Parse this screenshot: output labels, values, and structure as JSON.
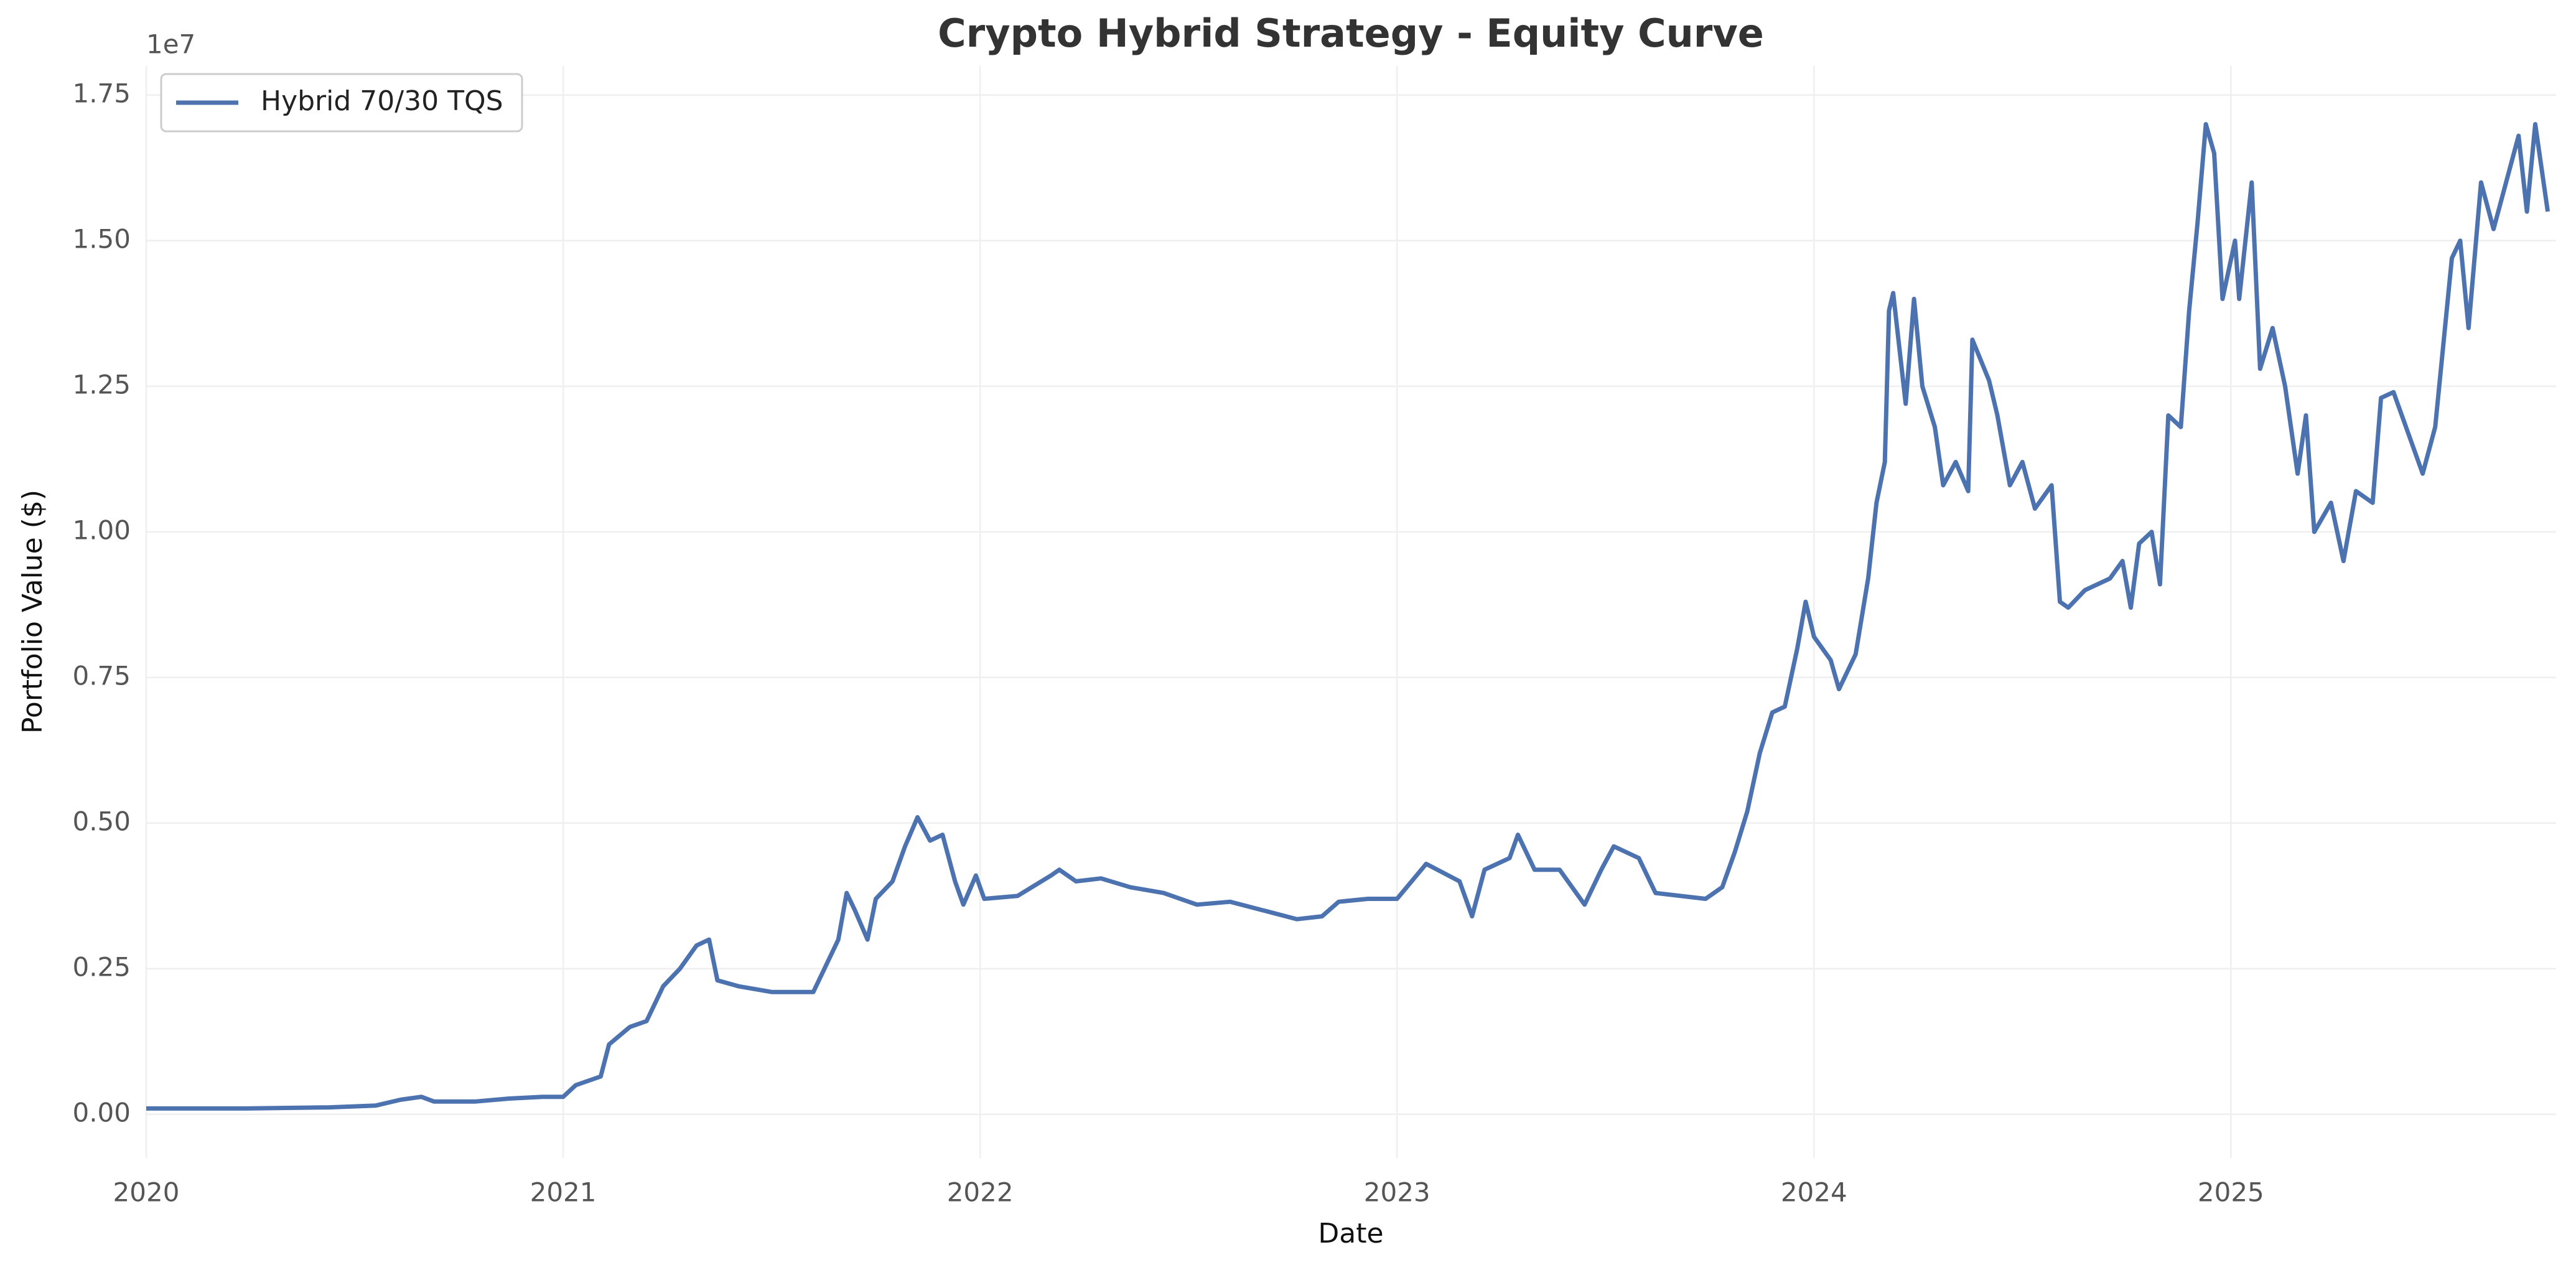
{
  "chart_data": {
    "type": "line",
    "title": "Crypto Hybrid Strategy - Equity Curve",
    "xlabel": "Date",
    "ylabel": "Portfolio Value ($)",
    "y_offset_label": "1e7",
    "x": [
      2020.0,
      2020.24,
      2020.44,
      2020.55,
      2020.61,
      2020.66,
      2020.69,
      2020.79,
      2020.87,
      2020.95,
      2021.0,
      2021.03,
      2021.09,
      2021.11,
      2021.16,
      2021.2,
      2021.24,
      2021.28,
      2021.32,
      2021.35,
      2021.37,
      2021.42,
      2021.5,
      2021.6,
      2021.62,
      2021.66,
      2021.68,
      2021.7,
      2021.73,
      2021.75,
      2021.79,
      2021.82,
      2021.85,
      2021.88,
      2021.91,
      2021.94,
      2021.96,
      2021.99,
      2022.01,
      2022.09,
      2022.17,
      2022.19,
      2022.23,
      2022.29,
      2022.36,
      2022.44,
      2022.52,
      2022.6,
      2022.68,
      2022.76,
      2022.82,
      2022.86,
      2022.93,
      2023.0,
      2023.07,
      2023.15,
      2023.18,
      2023.21,
      2023.27,
      2023.29,
      2023.33,
      2023.39,
      2023.45,
      2023.49,
      2023.52,
      2023.58,
      2023.62,
      2023.74,
      2023.78,
      2023.81,
      2023.84,
      2023.87,
      2023.9,
      2023.93,
      2023.96,
      2023.98,
      2024.0,
      2024.04,
      2024.06,
      2024.1,
      2024.13,
      2024.15,
      2024.17,
      2024.18,
      2024.19,
      2024.22,
      2024.24,
      2024.26,
      2024.29,
      2024.31,
      2024.34,
      2024.37,
      2024.38,
      2024.42,
      2024.44,
      2024.47,
      2024.5,
      2024.53,
      2024.57,
      2024.59,
      2024.61,
      2024.65,
      2024.71,
      2024.74,
      2024.76,
      2024.78,
      2024.81,
      2024.83,
      2024.85,
      2024.88,
      2024.9,
      2024.92,
      2024.94,
      2024.96,
      2024.98,
      2025.01,
      2025.02,
      2025.05,
      2025.07,
      2025.1,
      2025.13,
      2025.16,
      2025.18,
      2025.2,
      2025.24,
      2025.27,
      2025.3,
      2025.34,
      2025.36,
      2025.39,
      2025.43,
      2025.46,
      2025.49,
      2025.53,
      2025.55,
      2025.57,
      2025.6,
      2025.63,
      2025.66,
      2025.69,
      2025.71,
      2025.73,
      2025.76
    ],
    "series": [
      {
        "name": "Hybrid 70/30 TQS",
        "color": "#4c72b0",
        "values": [
          0.01,
          0.01,
          0.012,
          0.015,
          0.025,
          0.03,
          0.022,
          0.022,
          0.027,
          0.03,
          0.03,
          0.05,
          0.065,
          0.12,
          0.15,
          0.16,
          0.22,
          0.25,
          0.29,
          0.3,
          0.23,
          0.22,
          0.21,
          0.21,
          0.24,
          0.3,
          0.38,
          0.35,
          0.3,
          0.37,
          0.4,
          0.46,
          0.51,
          0.47,
          0.48,
          0.4,
          0.36,
          0.41,
          0.37,
          0.375,
          0.41,
          0.42,
          0.4,
          0.405,
          0.39,
          0.38,
          0.36,
          0.365,
          0.35,
          0.335,
          0.34,
          0.365,
          0.37,
          0.37,
          0.43,
          0.4,
          0.34,
          0.42,
          0.44,
          0.48,
          0.42,
          0.42,
          0.36,
          0.42,
          0.46,
          0.44,
          0.38,
          0.37,
          0.39,
          0.45,
          0.52,
          0.62,
          0.69,
          0.7,
          0.8,
          0.88,
          0.82,
          0.78,
          0.73,
          0.79,
          0.92,
          1.05,
          1.12,
          1.38,
          1.41,
          1.22,
          1.4,
          1.25,
          1.18,
          1.08,
          1.12,
          1.07,
          1.33,
          1.26,
          1.2,
          1.08,
          1.12,
          1.04,
          1.08,
          0.88,
          0.87,
          0.9,
          0.92,
          0.95,
          0.87,
          0.98,
          1.0,
          0.91,
          1.2,
          1.18,
          1.38,
          1.53,
          1.7,
          1.65,
          1.4,
          1.5,
          1.4,
          1.6,
          1.28,
          1.35,
          1.25,
          1.1,
          1.2,
          1.0,
          1.05,
          0.95,
          1.07,
          1.05,
          1.23,
          1.24,
          1.16,
          1.1,
          1.18,
          1.47,
          1.5,
          1.35,
          1.6,
          1.52,
          1.6,
          1.68,
          1.55,
          1.7,
          1.55
        ]
      }
    ],
    "xlim": [
      2020,
      2025.78
    ],
    "xticks": [
      2020,
      2021,
      2022,
      2023,
      2024,
      2025
    ],
    "ylim": [
      -0.075,
      1.8
    ],
    "yticks": [
      {
        "value": 0,
        "label": "0.00"
      },
      0.25,
      {
        "value": 0.5,
        "label": "0.50"
      },
      0.75,
      {
        "value": 1,
        "label": "1.00"
      },
      1.25,
      {
        "value": 1.5,
        "label": "1.50"
      },
      1.75
    ],
    "grid": true,
    "legend": "upper left"
  }
}
